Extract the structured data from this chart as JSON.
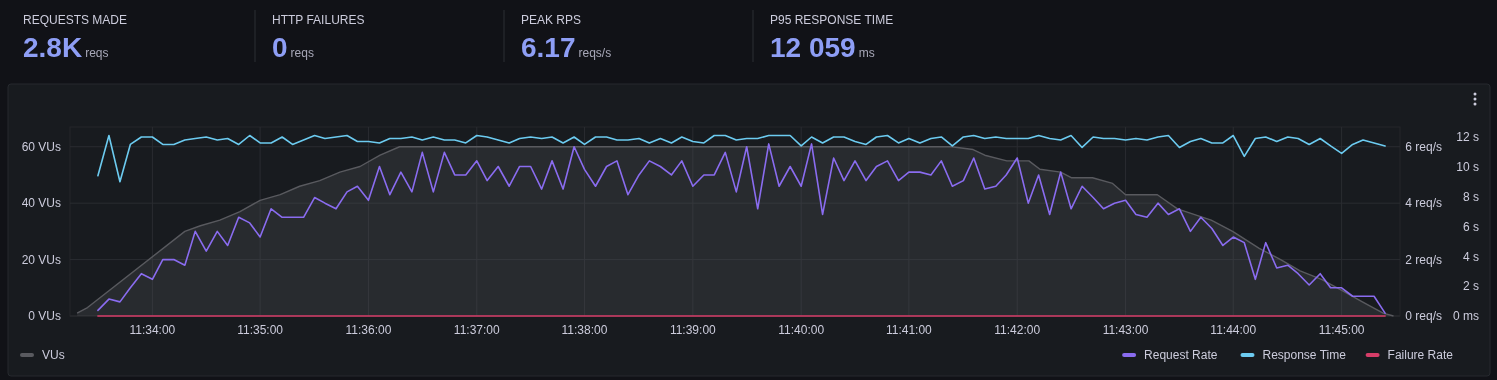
{
  "chart_data": [
    {
      "type": "other",
      "annotations": [
        "REQUESTS MADE",
        "2.8K",
        "reqs",
        "HTTP FAILURES",
        "0",
        "reqs",
        "PEAK RPS",
        "6.17",
        "reqs/s",
        "P95 RESPONSE TIME",
        "12 059",
        "ms"
      ]
    },
    {
      "type": "line",
      "grid": true,
      "legend": "bottom",
      "xlim": [
        11.554,
        11.759
      ],
      "xticks": [
        {
          "value": 11.5667,
          "label": "11:34:00"
        },
        {
          "value": 11.5833,
          "label": "11:35:00"
        },
        {
          "value": 11.6,
          "label": "11:36:00"
        },
        {
          "value": 11.6167,
          "label": "11:37:00"
        },
        {
          "value": 11.6333,
          "label": "11:38:00"
        },
        {
          "value": 11.65,
          "label": "11:39:00"
        },
        {
          "value": 11.6667,
          "label": "11:40:00"
        },
        {
          "value": 11.6833,
          "label": "11:41:00"
        },
        {
          "value": 11.7,
          "label": "11:42:00"
        },
        {
          "value": 11.7167,
          "label": "11:43:00"
        },
        {
          "value": 11.7333,
          "label": "11:44:00"
        },
        {
          "value": 11.75,
          "label": "11:45:00"
        }
      ],
      "ylim": [
        0,
        67
      ],
      "yticks": [
        {
          "value": 0,
          "label": "0 VUs"
        },
        {
          "value": 20,
          "label": "20 VUs"
        },
        {
          "value": 40,
          "label": "40 VUs"
        },
        {
          "value": 60,
          "label": "60 VUs"
        }
      ],
      "y2lim": [
        0,
        6.7
      ],
      "y2ticks": [
        {
          "value": 0,
          "label": "0 req/s"
        },
        {
          "value": 2,
          "label": "2 req/s"
        },
        {
          "value": 4,
          "label": "4 req/s"
        },
        {
          "value": 6,
          "label": "6 req/s"
        }
      ],
      "y3lim": [
        0,
        12.67
      ],
      "y3ticks": [
        {
          "value": 0,
          "label": "0 ms"
        },
        {
          "value": 2,
          "label": "2 s"
        },
        {
          "value": 4,
          "label": "4 s"
        },
        {
          "value": 6,
          "label": "6 s"
        },
        {
          "value": 8,
          "label": "8 s"
        },
        {
          "value": 10,
          "label": "10 s"
        },
        {
          "value": 12,
          "label": "12 s"
        }
      ],
      "x": [
        11.5583,
        11.56,
        11.5617,
        11.5633,
        11.565,
        11.5667,
        11.5683,
        11.57,
        11.5717,
        11.5733,
        11.575,
        11.5767,
        11.5783,
        11.58,
        11.5817,
        11.5833,
        11.585,
        11.5867,
        11.5883,
        11.59,
        11.5917,
        11.5933,
        11.595,
        11.5967,
        11.5983,
        11.6,
        11.6017,
        11.6033,
        11.605,
        11.6067,
        11.6083,
        11.61,
        11.6117,
        11.6133,
        11.615,
        11.6167,
        11.6183,
        11.62,
        11.6217,
        11.6233,
        11.625,
        11.6267,
        11.6283,
        11.63,
        11.6317,
        11.6333,
        11.635,
        11.6367,
        11.6383,
        11.64,
        11.6417,
        11.6433,
        11.645,
        11.6467,
        11.6483,
        11.65,
        11.6517,
        11.6533,
        11.655,
        11.6567,
        11.6583,
        11.66,
        11.6617,
        11.6633,
        11.665,
        11.6667,
        11.6683,
        11.67,
        11.6717,
        11.6733,
        11.675,
        11.6767,
        11.6783,
        11.68,
        11.6817,
        11.6833,
        11.685,
        11.6867,
        11.6883,
        11.69,
        11.6917,
        11.6933,
        11.695,
        11.6967,
        11.6983,
        11.7,
        11.7017,
        11.7033,
        11.705,
        11.7067,
        11.7083,
        11.71,
        11.7117,
        11.7133,
        11.715,
        11.7167,
        11.7183,
        11.72,
        11.7217,
        11.7233,
        11.725,
        11.7267,
        11.7283,
        11.73,
        11.7317,
        11.7333,
        11.735,
        11.7367,
        11.7383,
        11.74,
        11.7417,
        11.7433,
        11.745,
        11.7467,
        11.7483,
        11.75,
        11.7517,
        11.7533,
        11.755,
        11.7567
      ],
      "series": [
        {
          "name": "VUs",
          "type": "area",
          "color": "#595a5f",
          "x": [
            11.5551,
            11.5567,
            11.5717,
            11.5741,
            11.5771,
            11.5802,
            11.5833,
            11.5864,
            11.5894,
            11.5925,
            11.5956,
            11.5987,
            11.6018,
            11.6048,
            11.6899,
            11.6932,
            11.695,
            11.6984,
            11.7018,
            11.7035,
            11.7067,
            11.7084,
            11.7116,
            11.7147,
            11.7167,
            11.7216,
            11.7247,
            11.7299,
            11.7332,
            11.7373,
            11.7406,
            11.7436,
            11.7469,
            11.7501,
            11.7532,
            11.7564,
            11.758
          ],
          "values": [
            1,
            3,
            30,
            32,
            34,
            37,
            41,
            43,
            46,
            48,
            51,
            53,
            57,
            60,
            60,
            59,
            57,
            55,
            55,
            52,
            51,
            49,
            49,
            47,
            43,
            43,
            38,
            34,
            30,
            24,
            20,
            16,
            13,
            9,
            5,
            1,
            0
          ]
        },
        {
          "name": "Request Rate",
          "color": "#8a6cf0",
          "axis": "y2",
          "values": [
            0.2,
            0.6,
            0.5,
            1,
            1.5,
            1.3,
            2,
            2,
            1.8,
            3,
            2.3,
            3,
            2.5,
            3.5,
            3.3,
            2.8,
            3.8,
            3.5,
            3.5,
            3.5,
            4.2,
            4,
            3.8,
            4.4,
            4.6,
            4.1,
            5.3,
            4.3,
            5.1,
            4.4,
            5.8,
            4.4,
            5.8,
            5,
            5,
            5.5,
            4.8,
            5.3,
            4.6,
            5.3,
            5.3,
            4.5,
            5.5,
            4.5,
            6,
            5.2,
            4.6,
            5.3,
            5.5,
            4.3,
            5,
            5.5,
            5.3,
            5,
            5.5,
            4.6,
            5,
            5,
            5.8,
            4.4,
            6,
            3.8,
            6.1,
            4.6,
            5.3,
            4.6,
            6.1,
            3.6,
            5.6,
            4.8,
            5.5,
            4.8,
            5.3,
            5.5,
            4.8,
            5.1,
            5.1,
            5,
            5.5,
            4.6,
            4.8,
            5.6,
            4.5,
            4.6,
            5,
            5.6,
            4,
            5,
            3.6,
            5.1,
            3.8,
            4.6,
            4.2,
            3.8,
            4,
            4.1,
            3.6,
            3.5,
            4,
            3.6,
            3.8,
            3,
            3.5,
            3.1,
            2.5,
            2.8,
            2.6,
            1.3,
            2.6,
            1.7,
            1.8,
            1.5,
            1.1,
            1.5,
            1,
            1,
            0.7,
            0.7,
            0.7,
            0.1
          ]
        },
        {
          "name": "Response Time",
          "color": "#6ccbf0",
          "axis": "y3",
          "values": [
            9.4,
            12.1,
            9,
            11.5,
            12,
            12,
            11.5,
            11.5,
            11.8,
            11.9,
            12,
            11.8,
            11.9,
            11.5,
            12.1,
            11.6,
            11.6,
            12,
            11.5,
            11.8,
            12.1,
            11.9,
            12,
            12.1,
            11.7,
            11.7,
            11.6,
            11.9,
            11.9,
            12,
            11.8,
            12,
            11.8,
            11.8,
            11.6,
            12.1,
            12,
            11.8,
            11.6,
            11.9,
            12,
            11.9,
            12,
            11.6,
            12,
            11.5,
            12,
            12,
            11.8,
            11.8,
            11.9,
            11.6,
            11.9,
            11.6,
            12,
            11.7,
            11.6,
            12.1,
            12.1,
            11.8,
            11.9,
            11.9,
            12.1,
            12.1,
            12.1,
            11.4,
            12,
            11.6,
            12,
            12,
            11.7,
            11.5,
            12,
            12.1,
            11.6,
            11.9,
            11.6,
            11.9,
            12,
            11.4,
            12,
            12.1,
            11.9,
            12,
            11.9,
            11.9,
            11.9,
            12.1,
            11.9,
            11.8,
            12.1,
            11.3,
            12,
            11.9,
            11.9,
            11.8,
            11.9,
            11.8,
            12,
            12.1,
            11.3,
            11.7,
            11.9,
            11.6,
            11.6,
            12.1,
            10.7,
            11.9,
            12,
            11.7,
            12,
            11.9,
            11.5,
            11.9,
            11.4,
            10.9,
            11.5,
            11.8,
            11.6,
            11.4
          ]
        },
        {
          "name": "Failure Rate",
          "color": "#d63d68",
          "axis": "y2",
          "x": [
            11.5583,
            11.7567
          ],
          "values": [
            0,
            0
          ]
        }
      ]
    }
  ]
}
